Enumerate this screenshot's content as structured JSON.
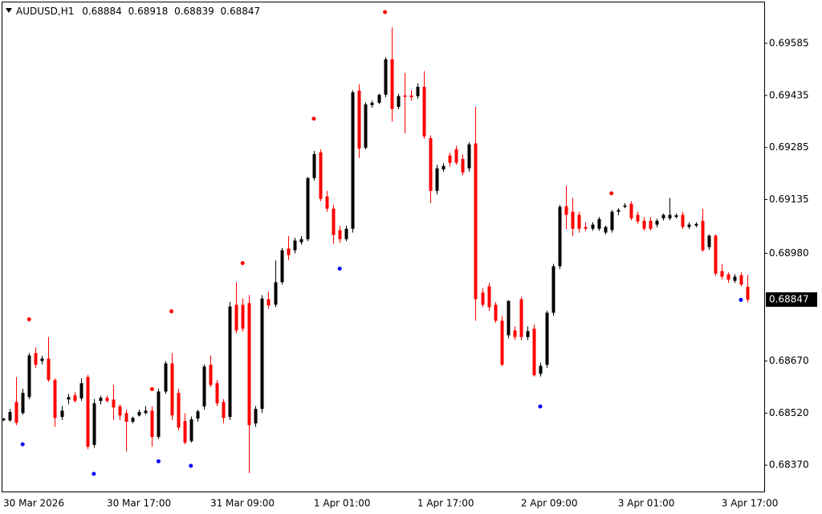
{
  "chart_data": {
    "type": "candlestick",
    "symbol": "AUDUSD,H1",
    "bull_color": "#000000",
    "bear_color": "#ff0000",
    "ylim": [
      0.68294,
      0.69703
    ],
    "yticks": [
      0.69585,
      0.69435,
      0.69285,
      0.69135,
      {
        "value": 0.6898,
        "label": "0.68980"
      },
      {
        "value": 0.6867,
        "label": "0.68670"
      },
      {
        "value": 0.6852,
        "label": "0.68520"
      },
      {
        "value": 0.6837,
        "label": "0.68370"
      }
    ],
    "categories": [
      "30 Mar 2026",
      null,
      null,
      null,
      null,
      null,
      null,
      null,
      null,
      null,
      null,
      null,
      null,
      null,
      null,
      null,
      "30 Mar 17:00",
      null,
      null,
      null,
      null,
      null,
      null,
      null,
      null,
      null,
      null,
      null,
      null,
      null,
      null,
      null,
      "31 Mar 09:00",
      null,
      null,
      null,
      null,
      null,
      null,
      null,
      null,
      null,
      null,
      null,
      null,
      null,
      null,
      null,
      "1 Apr 01:00",
      null,
      null,
      null,
      null,
      null,
      null,
      null,
      null,
      null,
      null,
      null,
      null,
      null,
      null,
      null,
      "1 Apr 17:00",
      null,
      null,
      null,
      null,
      null,
      null,
      null,
      null,
      null,
      null,
      null,
      null,
      null,
      null,
      null,
      "2 Apr 09:00",
      null,
      null,
      null,
      null,
      null,
      null,
      null,
      null,
      null,
      null,
      null,
      null,
      null,
      null,
      "3 Apr 01:00",
      null,
      null,
      null,
      null,
      null,
      null,
      null,
      null,
      null,
      null,
      null,
      null,
      null,
      null,
      null,
      "3 Apr 17:00",
      null,
      null,
      null,
      null
    ],
    "candles": [
      [
        0.68499,
        0.68506,
        0.68497,
        0.68504
      ],
      [
        0.68499,
        0.68532,
        0.68495,
        0.68523
      ],
      [
        0.68552,
        0.68624,
        0.68485,
        0.68492
      ],
      [
        0.6852,
        0.6859,
        0.68515,
        0.68578
      ],
      [
        0.68566,
        0.68693,
        0.6856,
        0.68686
      ],
      [
        0.68693,
        0.6871,
        0.6865,
        0.68659
      ],
      [
        0.6867,
        0.68685,
        0.6866,
        0.68677
      ],
      [
        0.68677,
        0.68739,
        0.6861,
        0.68615
      ],
      [
        0.68615,
        0.6862,
        0.6848,
        0.68506
      ],
      [
        0.68509,
        0.6854,
        0.685,
        0.68527
      ],
      [
        0.68559,
        0.68575,
        0.68545,
        0.68566
      ],
      [
        0.68571,
        0.6858,
        0.6855,
        0.68555
      ],
      [
        0.68562,
        0.6862,
        0.68555,
        0.68606
      ],
      [
        0.68624,
        0.6863,
        0.68416,
        0.68423
      ],
      [
        0.68428,
        0.6856,
        0.6842,
        0.68548
      ],
      [
        0.68555,
        0.6857,
        0.68545,
        0.68564
      ],
      [
        0.68564,
        0.6857,
        0.6855,
        0.68555
      ],
      [
        0.68559,
        0.68601,
        0.685,
        0.68536
      ],
      [
        0.68539,
        0.68545,
        0.685,
        0.68513
      ],
      [
        0.6852,
        0.6853,
        0.68409,
        0.68495
      ],
      [
        0.68495,
        0.6851,
        0.6849,
        0.68506
      ],
      [
        0.68513,
        0.6853,
        0.6851,
        0.68523
      ],
      [
        0.6852,
        0.6854,
        0.68515,
        0.68527
      ],
      [
        0.68527,
        0.6854,
        0.68423,
        0.68451
      ],
      [
        0.68451,
        0.6859,
        0.68445,
        0.68582
      ],
      [
        0.68582,
        0.6867,
        0.68575,
        0.68663
      ],
      [
        0.68663,
        0.68693,
        0.685,
        0.68513
      ],
      [
        0.68578,
        0.6859,
        0.6847,
        0.68478
      ],
      [
        0.68497,
        0.6852,
        0.6843,
        0.68435
      ],
      [
        0.68439,
        0.6851,
        0.68435,
        0.68502
      ],
      [
        0.68504,
        0.6853,
        0.68495,
        0.68525
      ],
      [
        0.68539,
        0.6866,
        0.6853,
        0.68654
      ],
      [
        0.68659,
        0.68686,
        0.68595,
        0.68601
      ],
      [
        0.68606,
        0.68615,
        0.6854,
        0.68548
      ],
      [
        0.68552,
        0.6856,
        0.6849,
        0.68506
      ],
      [
        0.68509,
        0.6884,
        0.685,
        0.68827
      ],
      [
        0.68832,
        0.68897,
        0.6875,
        0.68758
      ],
      [
        0.68832,
        0.6885,
        0.68755,
        0.68763
      ],
      [
        0.68837,
        0.6886,
        0.68347,
        0.68485
      ],
      [
        0.6849,
        0.6854,
        0.6848,
        0.68532
      ],
      [
        0.68532,
        0.6886,
        0.6852,
        0.6885
      ],
      [
        0.68848,
        0.6887,
        0.6882,
        0.6883
      ],
      [
        0.68832,
        0.6896,
        0.68825,
        0.68897
      ],
      [
        0.68897,
        0.68995,
        0.6889,
        0.68989
      ],
      [
        0.68994,
        0.6903,
        0.6896,
        0.68975
      ],
      [
        0.68989,
        0.69025,
        0.6898,
        0.69017
      ],
      [
        0.69012,
        0.6903,
        0.69005,
        0.69021
      ],
      [
        0.69021,
        0.692,
        0.69015,
        0.69197
      ],
      [
        0.69197,
        0.69275,
        0.6919,
        0.69266
      ],
      [
        0.69271,
        0.6928,
        0.6913,
        0.69137
      ],
      [
        0.69144,
        0.6916,
        0.691,
        0.69109
      ],
      [
        0.69109,
        0.6912,
        0.69007,
        0.69033
      ],
      [
        0.69047,
        0.6906,
        0.6901,
        0.69021
      ],
      [
        0.69021,
        0.6906,
        0.69015,
        0.69051
      ],
      [
        0.69051,
        0.6945,
        0.6904,
        0.69444
      ],
      [
        0.69449,
        0.69467,
        0.69255,
        0.69282
      ],
      [
        0.69284,
        0.69415,
        0.6928,
        0.69409
      ],
      [
        0.69407,
        0.6942,
        0.694,
        0.69414
      ],
      [
        0.69414,
        0.6944,
        0.6941,
        0.69437
      ],
      [
        0.69437,
        0.69545,
        0.6943,
        0.69539
      ],
      [
        0.69539,
        0.69631,
        0.69359,
        0.69396
      ],
      [
        0.69402,
        0.6944,
        0.69395,
        0.69433
      ],
      [
        0.69435,
        0.695,
        0.69326,
        0.69431
      ],
      [
        0.69435,
        0.6945,
        0.6942,
        0.6943
      ],
      [
        0.69433,
        0.6947,
        0.69425,
        0.6946
      ],
      [
        0.6946,
        0.69505,
        0.6931,
        0.69317
      ],
      [
        0.69312,
        0.6932,
        0.69125,
        0.6916
      ],
      [
        0.6916,
        0.69235,
        0.6915,
        0.69225
      ],
      [
        0.69222,
        0.6924,
        0.69215,
        0.69232
      ],
      [
        0.69262,
        0.6927,
        0.6923,
        0.69241
      ],
      [
        0.6928,
        0.6929,
        0.69235,
        0.69241
      ],
      [
        0.69252,
        0.69265,
        0.69205,
        0.69213
      ],
      [
        0.69225,
        0.693,
        0.69215,
        0.69294
      ],
      [
        0.69297,
        0.69402,
        0.68786,
        0.68848
      ],
      [
        0.68867,
        0.6888,
        0.68825,
        0.68832
      ],
      [
        0.68885,
        0.68895,
        0.68815,
        0.68825
      ],
      [
        0.68832,
        0.6884,
        0.6878,
        0.68786
      ],
      [
        0.68786,
        0.688,
        0.68655,
        0.68659
      ],
      [
        0.68744,
        0.68845,
        0.68735,
        0.68843
      ],
      [
        0.68758,
        0.6877,
        0.6873,
        0.68739
      ],
      [
        0.68848,
        0.68855,
        0.6873,
        0.68739
      ],
      [
        0.68739,
        0.6877,
        0.6873,
        0.68756
      ],
      [
        0.68763,
        0.68775,
        0.68625,
        0.68629
      ],
      [
        0.68633,
        0.68665,
        0.68625,
        0.68656
      ],
      [
        0.68659,
        0.68815,
        0.6865,
        0.68809
      ],
      [
        0.68809,
        0.6895,
        0.688,
        0.68943
      ],
      [
        0.68943,
        0.6912,
        0.68935,
        0.69114
      ],
      [
        0.69116,
        0.69175,
        0.6905,
        0.69091
      ],
      [
        0.691,
        0.6914,
        0.6903,
        0.69051
      ],
      [
        0.69091,
        0.691,
        0.6904,
        0.69051
      ],
      [
        0.69056,
        0.6907,
        0.69045,
        0.69051
      ],
      [
        0.69051,
        0.6907,
        0.69045,
        0.69063
      ],
      [
        0.69051,
        0.69085,
        0.69045,
        0.69079
      ],
      [
        0.6904,
        0.6906,
        0.69035,
        0.69056
      ],
      [
        0.69047,
        0.69105,
        0.6904,
        0.691
      ],
      [
        0.691,
        0.6911,
        0.6909,
        0.69105
      ],
      [
        0.69114,
        0.69125,
        0.6911,
        0.69118
      ],
      [
        0.69123,
        0.6913,
        0.69075,
        0.69081
      ],
      [
        0.69091,
        0.691,
        0.69065,
        0.69072
      ],
      [
        0.69074,
        0.69085,
        0.69045,
        0.69051
      ],
      [
        0.69074,
        0.69085,
        0.69045,
        0.69051
      ],
      [
        0.69063,
        0.6908,
        0.69055,
        0.69074
      ],
      [
        0.69081,
        0.69095,
        0.69075,
        0.69091
      ],
      [
        0.69081,
        0.6914,
        0.69075,
        0.69091
      ],
      [
        0.69085,
        0.69095,
        0.6908,
        0.6909
      ],
      [
        0.69091,
        0.691,
        0.6905,
        0.69056
      ],
      [
        0.69056,
        0.6907,
        0.6905,
        0.69063
      ],
      [
        0.6906,
        0.6907,
        0.69055,
        0.69065
      ],
      [
        0.69074,
        0.69109,
        0.68985,
        0.68989
      ],
      [
        0.68998,
        0.69035,
        0.6899,
        0.69031
      ],
      [
        0.69031,
        0.69035,
        0.68915,
        0.68922
      ],
      [
        0.68929,
        0.6895,
        0.68905,
        0.68913
      ],
      [
        0.6892,
        0.68925,
        0.68895,
        0.68904
      ],
      [
        0.68901,
        0.6892,
        0.68895,
        0.68913
      ],
      [
        0.68917,
        0.68925,
        0.68885,
        0.6889
      ],
      [
        0.68884,
        0.68918,
        0.68839,
        0.68847
      ]
    ],
    "fractals_up": {
      "color": "#ff0000",
      "values": [
        null,
        null,
        null,
        null,
        0.6879,
        null,
        null,
        null,
        null,
        null,
        null,
        null,
        null,
        null,
        null,
        null,
        null,
        null,
        null,
        null,
        null,
        null,
        null,
        0.68589,
        null,
        null,
        0.68813,
        null,
        null,
        null,
        null,
        null,
        null,
        null,
        null,
        null,
        null,
        0.68952,
        null,
        null,
        null,
        null,
        null,
        null,
        null,
        null,
        null,
        null,
        0.69368,
        null,
        null,
        null,
        null,
        null,
        null,
        null,
        null,
        null,
        null,
        0.69675,
        null,
        null,
        null,
        null,
        null,
        null,
        null,
        null,
        null,
        null,
        null,
        null,
        null,
        null,
        null,
        null,
        null,
        null,
        null,
        null,
        null,
        null,
        null,
        null,
        null,
        null,
        null,
        null,
        null,
        null,
        null,
        null,
        null,
        null,
        0.69153,
        null,
        null,
        null,
        null,
        null,
        null,
        null,
        null,
        null,
        null,
        null,
        null,
        null,
        null,
        null,
        null,
        null,
        null,
        null,
        null,
        null
      ]
    },
    "fractals_down": {
      "color": "#0000ff",
      "values": [
        null,
        null,
        null,
        0.6843,
        null,
        null,
        null,
        null,
        null,
        null,
        null,
        null,
        null,
        null,
        0.68345,
        null,
        null,
        null,
        null,
        null,
        null,
        null,
        null,
        null,
        0.68381,
        null,
        null,
        null,
        null,
        0.68368,
        null,
        null,
        null,
        null,
        null,
        null,
        null,
        null,
        null,
        null,
        null,
        null,
        null,
        null,
        null,
        null,
        null,
        null,
        null,
        null,
        null,
        null,
        0.68936,
        null,
        null,
        null,
        null,
        null,
        null,
        null,
        null,
        null,
        null,
        null,
        null,
        null,
        null,
        null,
        null,
        null,
        null,
        null,
        null,
        null,
        null,
        null,
        null,
        null,
        null,
        null,
        null,
        null,
        null,
        0.68539,
        null,
        null,
        null,
        null,
        null,
        null,
        null,
        null,
        null,
        null,
        null,
        null,
        null,
        null,
        null,
        null,
        null,
        null,
        null,
        null,
        null,
        null,
        null,
        null,
        null,
        null,
        null,
        null,
        null,
        null,
        0.68846,
        null
      ]
    }
  }
}
